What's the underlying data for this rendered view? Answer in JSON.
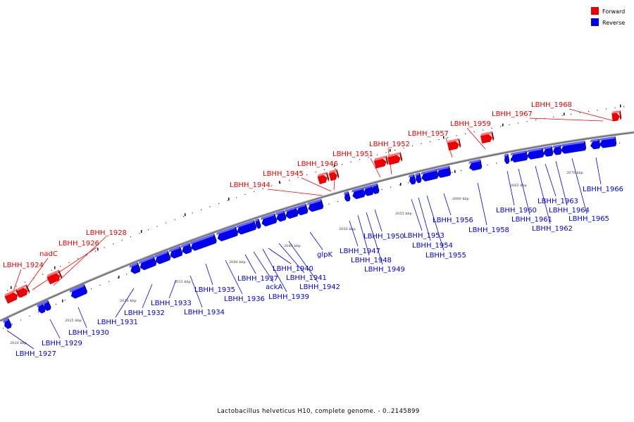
{
  "caption": "Lactobacillus helveticus H10, complete genome. - 0..2145899",
  "legend": [
    {
      "label": "Forward",
      "color": "#ee0000"
    },
    {
      "label": "Reverse",
      "color": "#0000ee"
    }
  ],
  "colors": {
    "forward": "#ee0000",
    "reverse": "#0000ee",
    "axis": "#777777"
  },
  "scale_ticks": [
    "2020 kbp",
    "2025 kbp",
    "2030 kbp",
    "2035 kbp",
    "2040 kbp",
    "2045 kbp",
    "2050 kbp",
    "2055 kbp",
    "2060 kbp",
    "2065 kbp",
    "2070 kbp"
  ],
  "genes": [
    {
      "label": "LBHH_1924",
      "strand": "forward"
    },
    {
      "label": "nadC",
      "strand": "forward"
    },
    {
      "label": "LBHH_1928",
      "strand": "forward"
    },
    {
      "label": "LBHH_1944",
      "strand": "forward"
    },
    {
      "label": "LBHH_1945",
      "strand": "forward"
    },
    {
      "label": "LBHH_1946",
      "strand": "forward"
    },
    {
      "label": "LBHH_1951",
      "strand": "forward"
    },
    {
      "label": "LBHH_1952",
      "strand": "forward"
    },
    {
      "label": "LBHH_1957",
      "strand": "forward"
    },
    {
      "label": "LBHH_1959",
      "strand": "forward"
    },
    {
      "label": "LBHH_1968",
      "strand": "forward"
    },
    {
      "label": "LBHH_1926",
      "strand": "forward"
    },
    {
      "label": "LBHH_1967",
      "strand": "forward"
    },
    {
      "label": "LBHH_1927",
      "strand": "reverse"
    },
    {
      "label": "LBHH_1929",
      "strand": "reverse"
    },
    {
      "label": "LBHH_1930",
      "strand": "reverse"
    },
    {
      "label": "LBHH_1931",
      "strand": "reverse"
    },
    {
      "label": "LBHH_1932",
      "strand": "reverse"
    },
    {
      "label": "LBHH_1933",
      "strand": "reverse"
    },
    {
      "label": "LBHH_1934",
      "strand": "reverse"
    },
    {
      "label": "LBHH_1935",
      "strand": "reverse"
    },
    {
      "label": "LBHH_1936",
      "strand": "reverse"
    },
    {
      "label": "LBHH_1937",
      "strand": "reverse"
    },
    {
      "label": "ackA",
      "strand": "reverse"
    },
    {
      "label": "LBHH_1939",
      "strand": "reverse"
    },
    {
      "label": "LBHH_1940",
      "strand": "reverse"
    },
    {
      "label": "LBHH_1941",
      "strand": "reverse"
    },
    {
      "label": "LBHH_1942",
      "strand": "reverse"
    },
    {
      "label": "glpK",
      "strand": "reverse"
    },
    {
      "label": "LBHH_1947",
      "strand": "reverse"
    },
    {
      "label": "LBHH_1948",
      "strand": "reverse"
    },
    {
      "label": "LBHH_1949",
      "strand": "reverse"
    },
    {
      "label": "LBHH_1950",
      "strand": "reverse"
    },
    {
      "label": "LBHH_1953",
      "strand": "reverse"
    },
    {
      "label": "LBHH_1954",
      "strand": "reverse"
    },
    {
      "label": "LBHH_1955",
      "strand": "reverse"
    },
    {
      "label": "LBHH_1956",
      "strand": "reverse"
    },
    {
      "label": "LBHH_1958",
      "strand": "reverse"
    },
    {
      "label": "LBHH_1960",
      "strand": "reverse"
    },
    {
      "label": "LBHH_1961",
      "strand": "reverse"
    },
    {
      "label": "LBHH_1962",
      "strand": "reverse"
    },
    {
      "label": "LBHH_1963",
      "strand": "reverse"
    },
    {
      "label": "LBHH_1964",
      "strand": "reverse"
    },
    {
      "label": "LBHH_1965",
      "strand": "reverse"
    },
    {
      "label": "LBHH_1966",
      "strand": "reverse"
    }
  ]
}
